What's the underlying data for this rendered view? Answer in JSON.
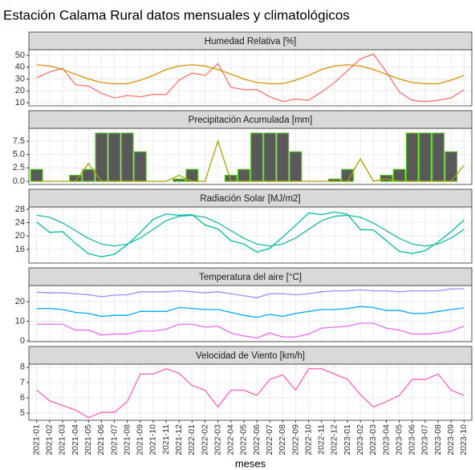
{
  "title": "Estación Calama Rural datos mensuales y climatológicos",
  "x_label": "meses",
  "categories": [
    "2021-01",
    "2021-02",
    "2021-03",
    "2021-04",
    "2021-05",
    "2021-06",
    "2021-07",
    "2021-08",
    "2021-09",
    "2021-10",
    "2021-11",
    "2021-12",
    "2022-01",
    "2022-02",
    "2022-03",
    "2022-04",
    "2022-05",
    "2022-06",
    "2022-07",
    "2022-08",
    "2022-09",
    "2022-10",
    "2022-11",
    "2022-12",
    "2023-01",
    "2023-02",
    "2023-03",
    "2023-04",
    "2023-05",
    "2023-06",
    "2023-07",
    "2023-08",
    "2023-09",
    "2023-10"
  ],
  "chart_data": [
    {
      "type": "line",
      "title": "Humedad Relativa [%]",
      "ylim": [
        7.3,
        54.7
      ],
      "yticks": [
        10,
        20,
        30,
        40,
        50
      ],
      "grid": true,
      "series": [
        {
          "color": "#F8766D",
          "values": [
            31,
            36,
            39,
            25,
            24,
            18,
            14,
            16,
            15,
            17,
            17,
            29,
            35,
            33,
            43,
            23,
            21,
            21,
            15,
            11,
            13,
            12,
            19,
            27,
            37,
            47,
            51,
            36,
            19,
            12,
            11,
            12,
            14,
            21
          ]
        },
        {
          "color": "#D89000",
          "values": [
            42,
            41,
            38,
            34,
            30,
            27,
            26,
            26,
            29,
            33,
            38,
            41,
            42,
            41,
            38,
            34,
            30,
            27,
            26,
            26,
            29,
            33,
            38,
            41,
            42,
            41,
            38,
            34,
            30,
            27,
            26,
            26,
            29,
            33
          ]
        }
      ]
    },
    {
      "type": "line",
      "title": "Precipitación Acumulada [mm]",
      "ylim": [
        -0.6,
        9.9
      ],
      "yticks": [
        {
          "value": 0,
          "label": "0.0"
        },
        2.5,
        {
          "value": 5,
          "label": "5.0"
        },
        7.5
      ],
      "grid": true,
      "series": [
        {
          "type": "bar",
          "color": "#595959",
          "border": "#4CBB17",
          "values": [
            2.2,
            0,
            0,
            1.1,
            2.2,
            9,
            9,
            9,
            5.5,
            0,
            0,
            0.4,
            2.2,
            0,
            0,
            1.1,
            2.2,
            9,
            9,
            9,
            5.5,
            0,
            0,
            0.4,
            2.2,
            0,
            0,
            1.1,
            2.2,
            9,
            9,
            9,
            5.5,
            0
          ]
        },
        {
          "color": "#A3A500",
          "values": [
            0,
            0,
            0,
            0,
            3.3,
            0,
            0,
            0,
            0,
            0,
            0,
            1.1,
            0,
            0,
            7.5,
            0,
            0,
            0,
            0,
            0,
            0,
            0,
            0,
            0,
            0,
            4.2,
            0,
            0.5,
            0,
            0,
            0,
            0,
            0,
            3
          ]
        }
      ]
    },
    {
      "type": "line",
      "title": "Radiación Solar [MJ/m2]",
      "ylim": [
        11.9,
        28.7
      ],
      "yticks": [
        16,
        20,
        24,
        28
      ],
      "grid": true,
      "series": [
        {
          "color": "#00BE9D",
          "values": [
            24.2,
            21.1,
            21.3,
            17.8,
            14.7,
            13.8,
            14.5,
            17.4,
            21,
            25,
            26.6,
            26.2,
            26.4,
            23.3,
            22.1,
            18.6,
            17.6,
            15.2,
            16.3,
            19.7,
            23.2,
            26.9,
            26.4,
            27.2,
            26.5,
            21.9,
            21.8,
            18.6,
            15.4,
            14.8,
            15.6,
            18.2,
            21.3,
            24.8
          ]
        },
        {
          "color": "#1FB8A8",
          "values": [
            26.2,
            25.6,
            23.9,
            21.6,
            19.3,
            17.6,
            17,
            17.6,
            19.4,
            22,
            24.6,
            25.9,
            26.2,
            25.6,
            23.9,
            21.6,
            19.3,
            17.6,
            17,
            17.6,
            19.4,
            22,
            24.6,
            25.9,
            26.2,
            25.6,
            23.9,
            21.6,
            19.3,
            17.6,
            17,
            17.6,
            19.4,
            22
          ]
        }
      ]
    },
    {
      "type": "line",
      "title": "Temperatura del aire [°C]",
      "ylim": [
        -0.4,
        28.2
      ],
      "yticks": [
        0,
        10,
        20
      ],
      "grid": true,
      "series": [
        {
          "color": "#9590FF",
          "values": [
            24.8,
            24.5,
            24.5,
            24,
            23.5,
            22.5,
            23.3,
            23.5,
            25,
            25,
            25,
            25.5,
            25,
            24.5,
            25,
            24,
            23,
            22,
            24,
            24,
            23.5,
            24,
            25,
            25.5,
            25.5,
            26,
            25.5,
            25.5,
            25,
            25.5,
            25.5,
            25.5,
            26.5,
            26.5
          ]
        },
        {
          "color": "#00A9FF",
          "values": [
            16.5,
            16.5,
            16,
            14.5,
            14,
            12.5,
            13,
            13,
            15,
            15,
            15,
            17,
            16.5,
            16,
            16,
            14.5,
            13,
            12,
            13.5,
            12.5,
            14,
            15,
            16,
            16,
            16.5,
            17.5,
            17,
            15.5,
            15.5,
            14,
            14,
            15,
            16,
            16.8
          ]
        },
        {
          "color": "#E76BF3",
          "values": [
            8.5,
            8.5,
            8.5,
            5.5,
            5.5,
            3,
            3.5,
            3.5,
            5,
            5,
            6,
            8.5,
            8.5,
            7,
            7.5,
            4,
            2.5,
            1.5,
            4,
            2,
            2,
            3.5,
            6.5,
            7,
            7.5,
            9,
            9,
            6.5,
            5.5,
            3.5,
            3.5,
            4,
            5,
            7.5
          ]
        }
      ]
    },
    {
      "type": "line",
      "title": "Velocidad de Viento [km/h]",
      "ylim": [
        4.53,
        8.2
      ],
      "yticks": [
        5,
        6,
        7,
        8
      ],
      "grid": true,
      "series": [
        {
          "color": "#FF62BC",
          "values": [
            6.5,
            5.8,
            5.5,
            5.2,
            4.7,
            5.05,
            5.05,
            5.75,
            7.55,
            7.55,
            7.9,
            7.6,
            6.8,
            6.5,
            5.4,
            6.5,
            6.5,
            6.15,
            7.2,
            7.5,
            6.5,
            7.9,
            7.9,
            7.55,
            7.2,
            6.2,
            5.4,
            5.75,
            6.15,
            7.2,
            7.2,
            7.55,
            6.5,
            6.15
          ]
        }
      ]
    }
  ]
}
